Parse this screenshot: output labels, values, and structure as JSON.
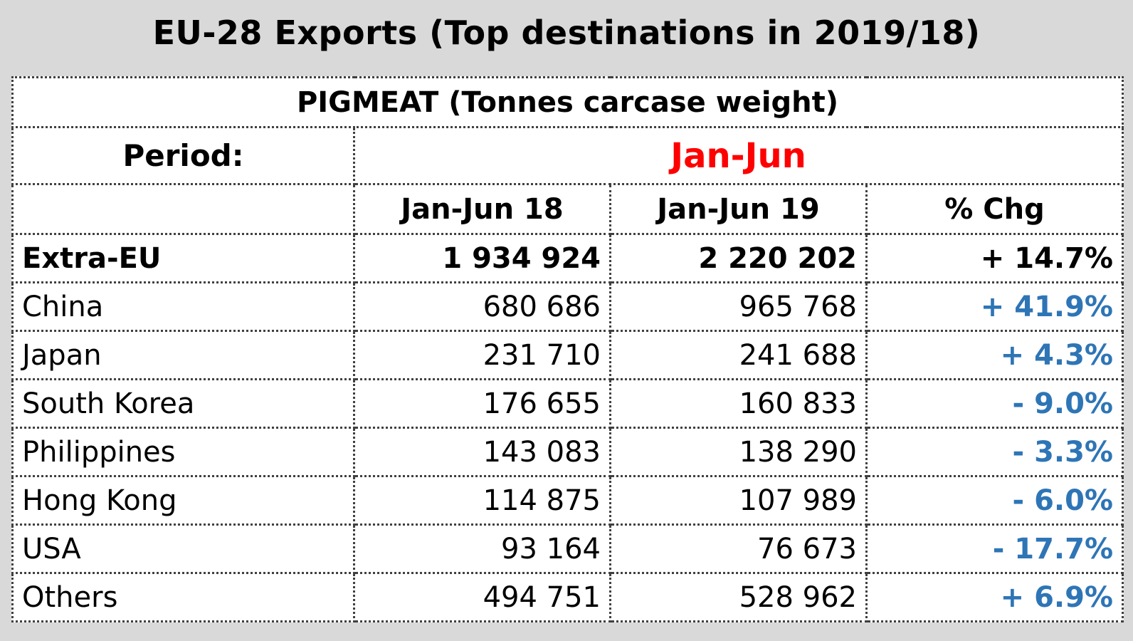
{
  "title": "EU-28 Exports (Top destinations in 2019/18)",
  "product": "PIGMEAT (Tonnes carcase weight)",
  "period_label": "Period:",
  "period_value": "Jan-Jun",
  "columns": [
    "Jan-Jun 18",
    "Jan-Jun 19",
    "% Chg"
  ],
  "total_row": {
    "country": "Extra-EU",
    "v18": "1 934 924",
    "v19": "2 220 202",
    "chg": "+ 14.7%"
  },
  "rows": [
    {
      "country": "China",
      "v18": "680 686",
      "v19": "965 768",
      "chg": "+ 41.9%"
    },
    {
      "country": "Japan",
      "v18": "231 710",
      "v19": "241 688",
      "chg": "+ 4.3%"
    },
    {
      "country": "South Korea",
      "v18": "176 655",
      "v19": "160 833",
      "chg": "- 9.0%"
    },
    {
      "country": "Philippines",
      "v18": "143 083",
      "v19": "138 290",
      "chg": "- 3.3%"
    },
    {
      "country": "Hong Kong",
      "v18": "114 875",
      "v19": "107 989",
      "chg": "- 6.0%"
    },
    {
      "country": "USA",
      "v18": "93 164",
      "v19": "76 673",
      "chg": "- 17.7%"
    },
    {
      "country": "Others",
      "v18": "494 751",
      "v19": "528 962",
      "chg": "+ 6.9%"
    }
  ],
  "colors": {
    "background": "#d9d9d9",
    "period_value": "#ff0000",
    "change_values": "#2e75b6",
    "border": "#404040"
  }
}
